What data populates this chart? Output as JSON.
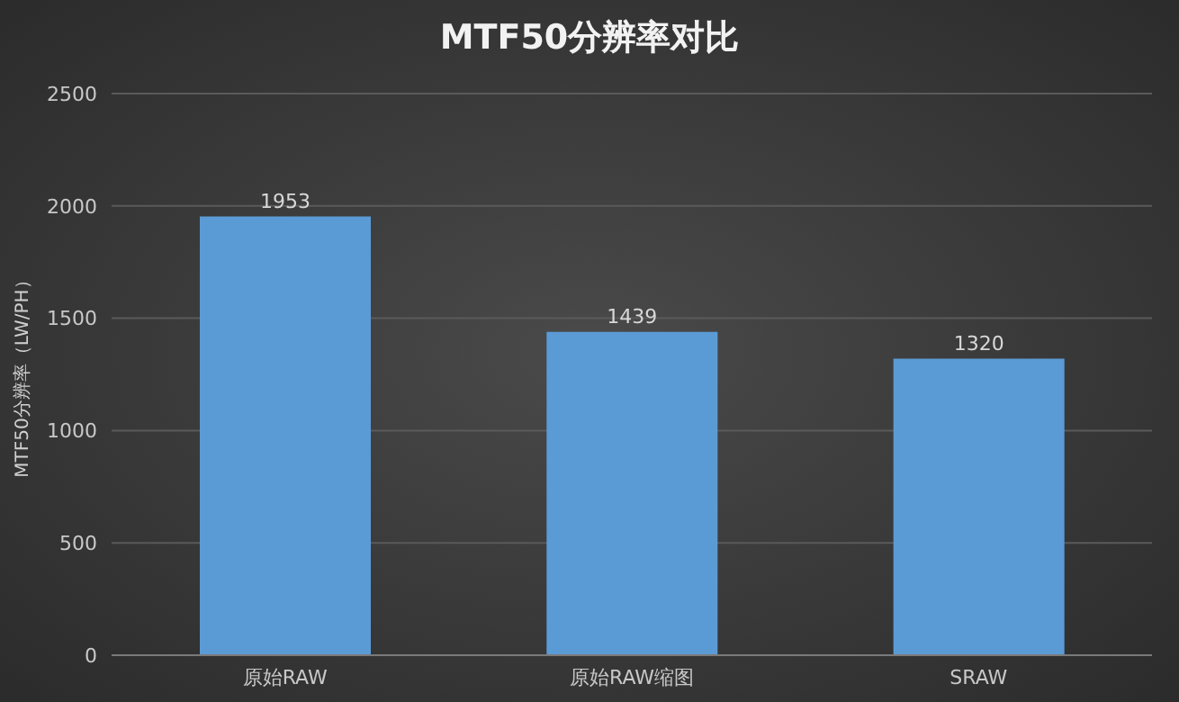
{
  "chart_data": {
    "type": "bar",
    "title": "MTF50分辨率对比",
    "ylabel": "MTF50分辨率（LW/PH）",
    "categories": [
      "原始RAW",
      "原始RAW缩图",
      "SRAW"
    ],
    "values": [
      1953,
      1439,
      1320
    ],
    "color": "#5b9bd5",
    "ylim": [
      0,
      2500
    ],
    "yticks": [
      0,
      500,
      1000,
      1500,
      2000,
      2500
    ],
    "grid": "y",
    "data_labels": true
  }
}
